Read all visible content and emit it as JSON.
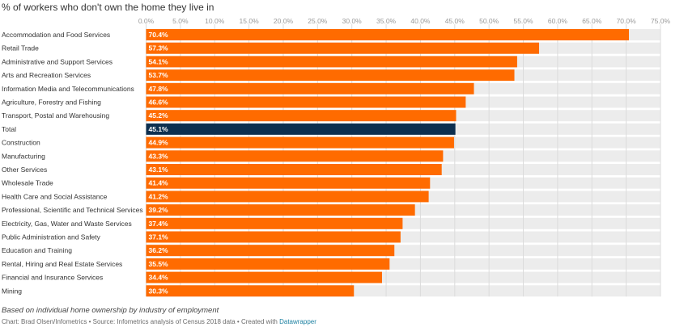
{
  "title": "% of workers who don't own the home they live in",
  "notes": "Based on individual home ownership by industry of employment",
  "credit": {
    "text": "Chart: Brad Olsen/Infometrics • Source: Infometrics analysis of Census 2018 data • Created with ",
    "link": "Datawrapper"
  },
  "colors": {
    "bar": "#ff6b00",
    "highlight": "#0d2f4f",
    "track": "#ececec",
    "background": "#ffffff"
  },
  "chart_data": {
    "type": "bar",
    "orientation": "horizontal",
    "title": "% of workers who don't own the home they live in",
    "xlim": [
      0,
      75
    ],
    "ticks": [
      "0.0%",
      "5.0%",
      "10.0%",
      "15.0%",
      "20.0%",
      "25.0%",
      "30.0%",
      "35.0%",
      "40.0%",
      "45.0%",
      "50.0%",
      "55.0%",
      "60.0%",
      "65.0%",
      "70.0%",
      "75.0%"
    ],
    "tick_values": [
      0,
      5,
      10,
      15,
      20,
      25,
      30,
      35,
      40,
      45,
      50,
      55,
      60,
      65,
      70,
      75
    ],
    "grid": true,
    "categories": [
      "Accommodation and Food Services",
      "Retail Trade",
      "Administrative and Support Services",
      "Arts and Recreation Services",
      "Information Media and Telecommunications",
      "Agriculture, Forestry and Fishing",
      "Transport, Postal and Warehousing",
      "Total",
      "Construction",
      "Manufacturing",
      "Other Services",
      "Wholesale Trade",
      "Health Care and Social Assistance",
      "Professional, Scientific and Technical Services",
      "Electricity, Gas, Water and Waste Services",
      "Public Administration and Safety",
      "Education and Training",
      "Rental, Hiring and Real Estate Services",
      "Financial and Insurance Services",
      "Mining"
    ],
    "values": [
      70.4,
      57.3,
      54.1,
      53.7,
      47.8,
      46.6,
      45.2,
      45.1,
      44.9,
      43.3,
      43.1,
      41.4,
      41.2,
      39.2,
      37.4,
      37.1,
      36.2,
      35.5,
      34.4,
      30.3
    ],
    "labels": [
      "70.4%",
      "57.3%",
      "54.1%",
      "53.7%",
      "47.8%",
      "46.6%",
      "45.2%",
      "45.1%",
      "44.9%",
      "43.3%",
      "43.1%",
      "41.4%",
      "41.2%",
      "39.2%",
      "37.4%",
      "37.1%",
      "36.2%",
      "35.5%",
      "34.4%",
      "30.3%"
    ],
    "highlight_category": "Total"
  }
}
